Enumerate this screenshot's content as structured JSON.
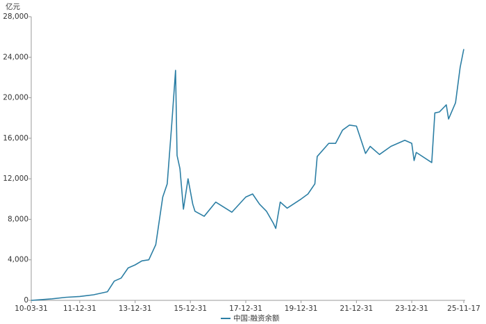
{
  "chart_data": {
    "type": "line",
    "y_unit": "亿元",
    "x": [
      "10-03-31",
      "10-06-30",
      "10-12-31",
      "11-06-30",
      "11-12-31",
      "12-06-30",
      "12-12-31",
      "13-03-31",
      "13-06-30",
      "13-09-30",
      "13-12-31",
      "14-03-31",
      "14-06-30",
      "14-09-30",
      "14-12-31",
      "15-02-28",
      "15-04-30",
      "15-06-18",
      "15-07-08",
      "15-08-15",
      "15-09-30",
      "15-11-30",
      "16-01-31",
      "16-02-29",
      "16-06-30",
      "16-11-30",
      "17-06-30",
      "17-12-31",
      "18-03-31",
      "18-06-30",
      "18-09-30",
      "18-12-31",
      "19-01-31",
      "19-03-31",
      "19-06-30",
      "19-12-31",
      "20-03-31",
      "20-06-30",
      "20-07-31",
      "20-12-31",
      "21-03-31",
      "21-06-30",
      "21-09-30",
      "21-12-31",
      "22-04-30",
      "22-06-30",
      "22-10-31",
      "23-03-31",
      "23-09-30",
      "23-12-31",
      "24-01-31",
      "24-02-29",
      "24-09-20",
      "24-10-31",
      "24-12-31",
      "25-03-31",
      "25-04-30",
      "25-07-31",
      "25-09-30",
      "25-11-17"
    ],
    "series": [
      {
        "name": "中国:融资余额",
        "color": "#2b7ea4",
        "values": [
          0,
          50,
          150,
          300,
          380,
          550,
          850,
          1900,
          2200,
          3200,
          3500,
          3900,
          4000,
          5500,
          10200,
          11500,
          17500,
          22700,
          14300,
          13000,
          9000,
          12000,
          9500,
          8800,
          8300,
          9700,
          8700,
          10200,
          10500,
          9500,
          8800,
          7600,
          7100,
          9700,
          9100,
          10000,
          10500,
          11500,
          14200,
          15500,
          15500,
          16800,
          17300,
          17200,
          14500,
          15200,
          14400,
          15200,
          15800,
          15500,
          13800,
          14600,
          13600,
          18500,
          18600,
          19300,
          17900,
          19500,
          23000,
          24800
        ]
      }
    ],
    "xticks": [
      "10-03-31",
      "11-12-31",
      "13-12-31",
      "15-12-31",
      "17-12-31",
      "19-12-31",
      "21-12-31",
      "23-12-31",
      "25-11-17"
    ],
    "ylim": [
      0,
      28000
    ],
    "yticks": [
      0,
      {
        "value": 4000,
        "label": "4,000"
      },
      {
        "value": 8000,
        "label": "8,000"
      },
      {
        "value": 12000,
        "label": "12,000"
      },
      {
        "value": 16000,
        "label": "16,000"
      },
      {
        "value": 20000,
        "label": "20,000"
      },
      {
        "value": 24000,
        "label": "24,000"
      },
      {
        "value": 28000,
        "label": "28,000"
      }
    ],
    "grid": false,
    "legend": "bottom"
  }
}
